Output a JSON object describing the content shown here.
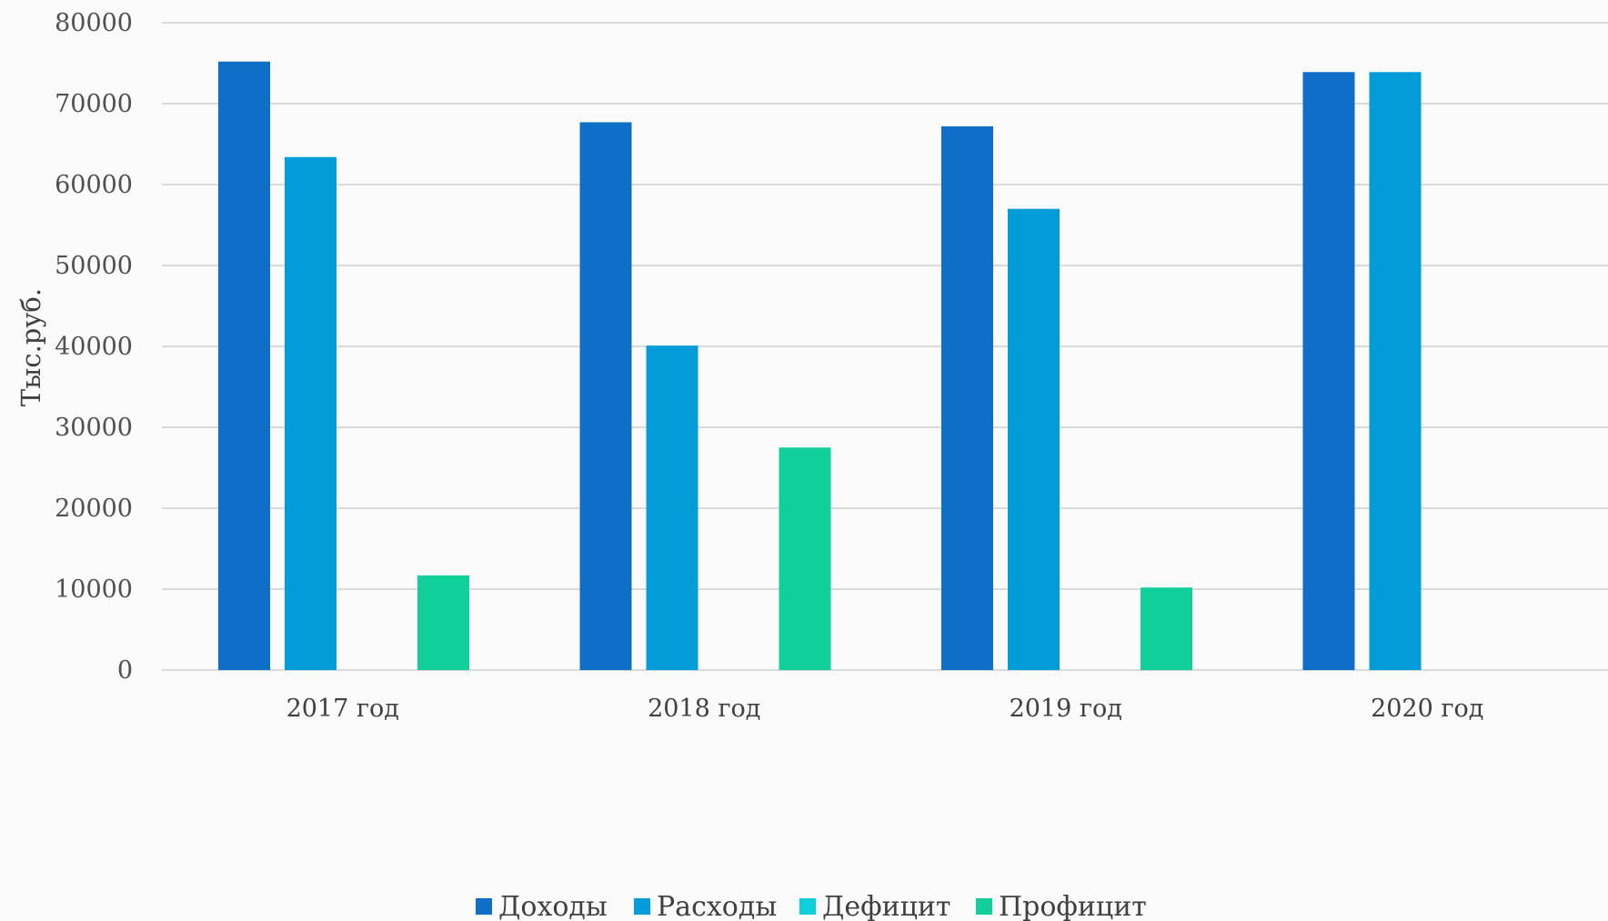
{
  "chart_data": {
    "type": "bar",
    "title": "",
    "xlabel": "",
    "ylabel": "Тыс.руб.",
    "categories": [
      "2017 год",
      "2018 год",
      "2019 год",
      "2020 год"
    ],
    "series": [
      {
        "name": "Доходы",
        "color": "#0f6fc6",
        "values": [
          75200,
          67700,
          67200,
          73900
        ]
      },
      {
        "name": "Расходы",
        "color": "#009dd9",
        "values": [
          63400,
          40100,
          57000,
          73900
        ]
      },
      {
        "name": "Дефицит",
        "color": "#0bd0d9",
        "values": [
          0,
          0,
          0,
          0
        ]
      },
      {
        "name": "Профицит",
        "color": "#10cf9b",
        "values": [
          11700,
          27500,
          10200,
          0
        ]
      }
    ],
    "ylim": [
      0,
      80000
    ],
    "yticks": [
      "0",
      "10000",
      "20000",
      "30000",
      "40000",
      "50000",
      "60000",
      "70000",
      "80000"
    ],
    "grid": true,
    "legend_position": "bottom"
  }
}
